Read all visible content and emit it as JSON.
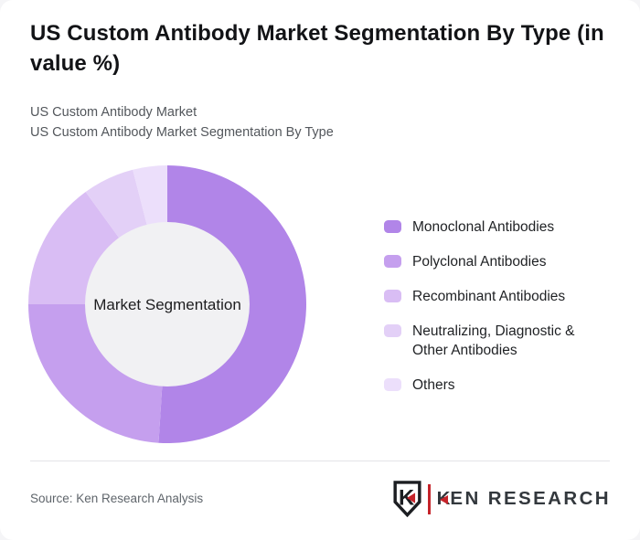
{
  "page": {
    "title": "US Custom Antibody Market Segmentation By Type (in value %)",
    "subtitle_line1": "US Custom Antibody Market",
    "subtitle_line2": "US Custom Antibody Market Segmentation By Type"
  },
  "chart_data": {
    "type": "pie",
    "variant": "donut",
    "title": "US Custom Antibody Market Segmentation By Type (in value %)",
    "center_label": "Market Segmentation",
    "categories": [
      "Monoclonal Antibodies",
      "Polyclonal Antibodies",
      "Recombinant Antibodies",
      "Neutralizing, Diagnostic & Other Antibodies",
      "Others"
    ],
    "values": [
      51,
      24,
      15,
      6,
      4
    ],
    "unit": "%",
    "colors": [
      "#b185e8",
      "#c59fee",
      "#d9bdf4",
      "#e3d0f7",
      "#ecdffb"
    ],
    "inner_circle_color": "#f1f1f3",
    "start_angle_deg": 0,
    "direction": "clockwise",
    "legend_position": "right",
    "legend_two_line_item": "Neutralizing, Diagnostic &\nOther Antibodies"
  },
  "footer": {
    "source": "Source: Ken Research Analysis",
    "logo": {
      "shield_letter": "K",
      "wordmark": "KEN RESEARCH",
      "accent_color": "#c5232a",
      "ink_color": "#1c1e22"
    }
  }
}
